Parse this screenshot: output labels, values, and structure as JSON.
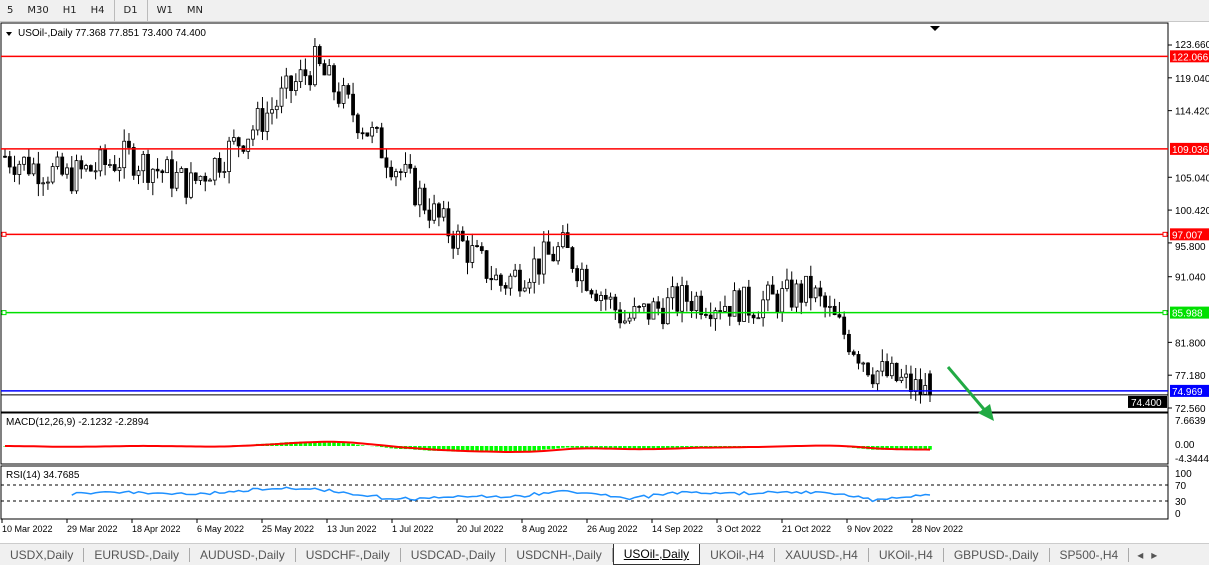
{
  "timeframes": [
    "5",
    "M30",
    "H1",
    "H4",
    "D1",
    "W1",
    "MN"
  ],
  "symbol_header": "USOil-,Daily  77.368 77.851 73.400 74.400",
  "price_axis": [
    "123.660",
    "119.040",
    "114.420",
    "105.040",
    "100.420",
    "95.800",
    "91.040",
    "81.800",
    "77.180",
    "72.560"
  ],
  "levels": [
    {
      "price": "122.066",
      "color": "#ff0000"
    },
    {
      "price": "109.036",
      "color": "#ff0000"
    },
    {
      "price": "97.007",
      "color": "#ff0000"
    },
    {
      "price": "85.988",
      "color": "#00e000"
    },
    {
      "price": "74.969",
      "color": "#0000ff"
    }
  ],
  "current_price": "74.400",
  "macd": {
    "label": "MACD(12,26,9) -2.1232 -2.2894",
    "axis": [
      "7.6639",
      "0.00",
      "-4.3444"
    ]
  },
  "rsi": {
    "label": "RSI(14) 34.7685",
    "axis": [
      "100",
      "70",
      "30",
      "0"
    ]
  },
  "chart_data": {
    "type": "candlestick",
    "symbol": "USOil-",
    "timeframe": "Daily",
    "dates": [
      "10 Mar 2022",
      "29 Mar 2022",
      "18 Apr 2022",
      "6 May 2022",
      "25 May 2022",
      "13 Jun 2022",
      "1 Jul 2022",
      "20 Jul 2022",
      "8 Aug 2022",
      "26 Aug 2022",
      "14 Sep 2022",
      "3 Oct 2022",
      "21 Oct 2022",
      "9 Nov 2022",
      "28 Nov 2022"
    ],
    "approx_close": [
      108,
      105,
      108,
      104,
      112,
      121,
      110,
      99,
      90,
      95,
      85,
      88,
      87,
      89,
      78
    ],
    "last": {
      "open": 77.368,
      "high": 77.851,
      "low": 73.4,
      "close": 74.4
    },
    "ylim": [
      72.56,
      123.66
    ]
  },
  "colors": {
    "bull": "#000000",
    "bear": "#000000",
    "macd_hist": "#00ff00",
    "macd_signal": "#ff0000",
    "rsi": "#1e90ff",
    "arrow": "#22aa44"
  },
  "tabs": [
    "USDX,Daily",
    "EURUSD-,Daily",
    "AUDUSD-,Daily",
    "USDCHF-,Daily",
    "USDCAD-,Daily",
    "USDCNH-,Daily",
    "USOil-,Daily",
    "UKOil-,H4",
    "XAUUSD-,H4",
    "UKOil-,H4",
    "GBPUSD-,Daily",
    "SP500-,H4"
  ],
  "active_tab": 6
}
